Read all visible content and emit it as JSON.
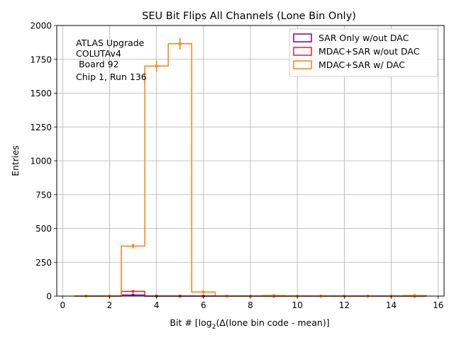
{
  "chart_data": {
    "type": "histogram-step",
    "title": "SEU Bit Flips All Channels (Lone Bin Only)",
    "xlabel_prefix": "Bit # [log",
    "xlabel_sub": "2",
    "xlabel_suffix": "(Δ(lone bin code - mean)]",
    "ylabel": "Entries",
    "xlim": [
      -0.25,
      16.25
    ],
    "ylim": [
      0,
      2000
    ],
    "x_ticks": [
      0,
      2,
      4,
      6,
      8,
      10,
      12,
      14,
      16
    ],
    "y_ticks": [
      0,
      250,
      500,
      750,
      1000,
      1250,
      1500,
      1750,
      2000
    ],
    "grid": true,
    "legend_position": "upper-right",
    "annotation": [
      "ATLAS Upgrade",
      "COLUTAv4",
      " Board 92",
      "Chip 1, Run 136"
    ],
    "bins": [
      1,
      2,
      3,
      4,
      5,
      6,
      7,
      8,
      9,
      10,
      11,
      12,
      13,
      14,
      15
    ],
    "bin_width": 1,
    "series": [
      {
        "name": "SAR Only w/out DAC",
        "color": "#800080",
        "values": [
          0,
          0,
          8,
          0,
          0,
          0,
          0,
          0,
          0,
          0,
          0,
          0,
          0,
          0,
          0
        ],
        "errors": [
          0,
          0,
          3,
          0,
          0,
          0,
          0,
          0,
          0,
          0,
          0,
          0,
          0,
          0,
          0
        ]
      },
      {
        "name": "MDAC+SAR w/out DAC",
        "color": "#d62728",
        "values": [
          0,
          0,
          35,
          0,
          0,
          0,
          0,
          0,
          0,
          0,
          0,
          0,
          0,
          0,
          0
        ],
        "errors": [
          0,
          0,
          6,
          0,
          0,
          0,
          0,
          0,
          0,
          0,
          0,
          0,
          0,
          0,
          0
        ]
      },
      {
        "name": "MDAC+SAR w/ DAC",
        "color": "#ff7f0e",
        "values": [
          0,
          0,
          370,
          1700,
          1865,
          30,
          0,
          0,
          4,
          0,
          0,
          0,
          0,
          0,
          4
        ],
        "errors": [
          0,
          0,
          19,
          41,
          43,
          5,
          0,
          0,
          2,
          0,
          0,
          0,
          0,
          0,
          2
        ]
      }
    ]
  }
}
